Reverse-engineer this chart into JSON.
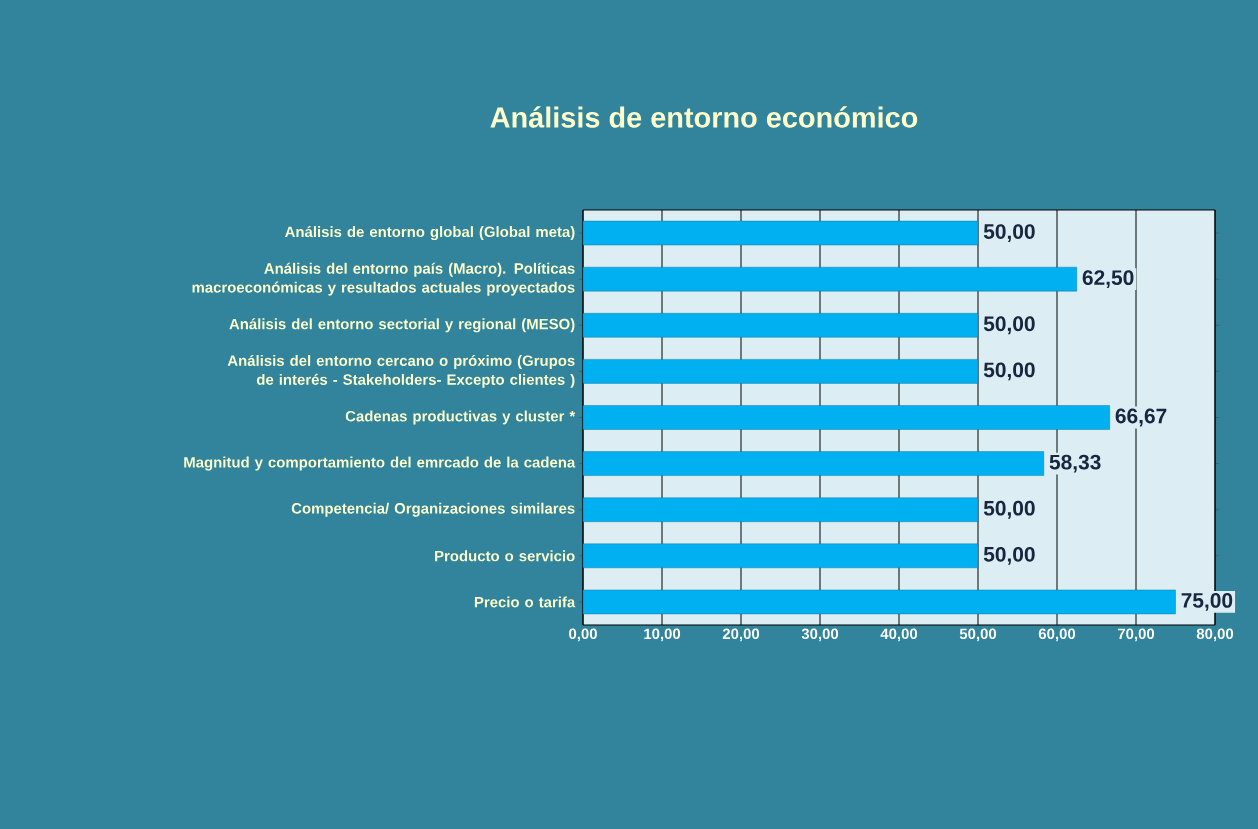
{
  "chart_data": {
    "type": "bar",
    "orientation": "horizontal",
    "title": "Análisis de entorno económico",
    "categories": [
      "Análisis de entorno global (Global meta)",
      "Análisis del entorno país (Macro). Políticas macroeconómicas y resultados actuales proyectados",
      "Análisis del entorno sectorial y regional (MESO)",
      "Análisis del entorno cercano o próximo (Grupos de interés - Stakeholders- Excepto clientes )",
      "Cadenas productivas y cluster *",
      "Magnitud y comportamiento del emrcado de la cadena",
      "Competencia/ Organizaciones similares",
      "Producto o servicio",
      "Precio o tarifa"
    ],
    "values": [
      50,
      62.5,
      50,
      50,
      66.67,
      58.33,
      50,
      50,
      75
    ],
    "value_labels": [
      "50,00",
      "62,50",
      "50,00",
      "50,00",
      "66,67",
      "58,33",
      "50,00",
      "50,00",
      "75,00"
    ],
    "color": "#00b0f0",
    "xlim": [
      0,
      80
    ],
    "xticks": [
      {
        "value": 0,
        "label": "0,00"
      },
      {
        "value": 10,
        "label": "10,00"
      },
      {
        "value": 20,
        "label": "20,00"
      },
      {
        "value": 30,
        "label": "30,00"
      },
      {
        "value": 40,
        "label": "40,00"
      },
      {
        "value": 50,
        "label": "50,00"
      },
      {
        "value": 60,
        "label": "60,00"
      },
      {
        "value": 70,
        "label": "70,00"
      },
      {
        "value": 80,
        "label": "80,00"
      }
    ],
    "grid": "x"
  }
}
